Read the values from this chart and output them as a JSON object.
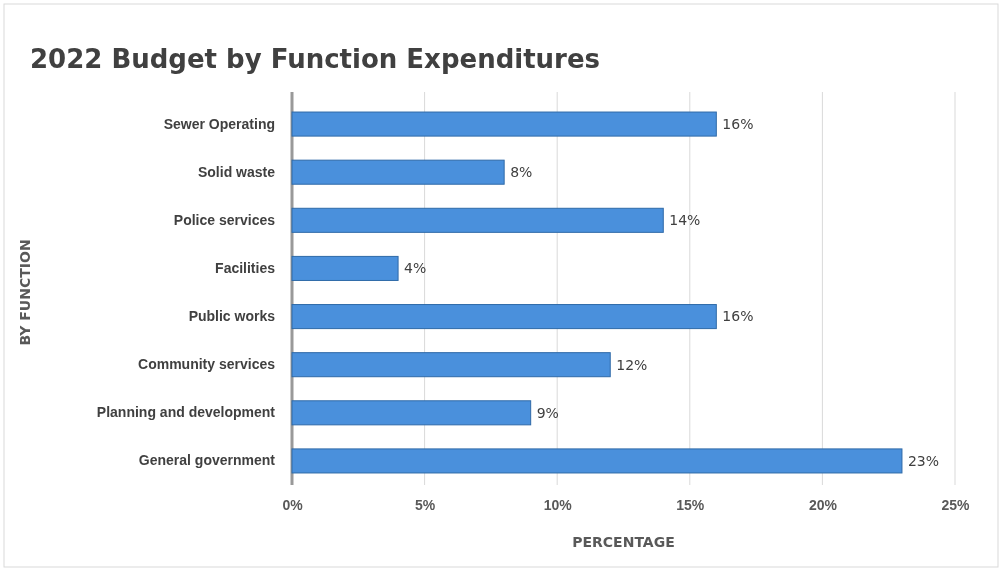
{
  "chart_data": {
    "type": "bar",
    "orientation": "horizontal",
    "title": "2022 Budget by Function Expenditures",
    "xlabel": "PERCENTAGE",
    "ylabel": "BY FUNCTION",
    "categories": [
      "Sewer Operating",
      "Solid waste",
      "Police services",
      "Facilities",
      "Public works",
      "Community services",
      "Planning and development",
      "General government"
    ],
    "values": [
      16,
      8,
      14,
      4,
      16,
      12,
      9,
      23
    ],
    "color": "#4a90dc",
    "data_labels": true,
    "value_labels": [
      "16%",
      "8%",
      "14%",
      "4%",
      "16%",
      "12%",
      "9%",
      "23%"
    ],
    "xlim": [
      0,
      25
    ],
    "xticks": [
      {
        "value": 0,
        "label": "0%"
      },
      {
        "value": 5,
        "label": "5%"
      },
      {
        "value": 10,
        "label": "10%"
      },
      {
        "value": 15,
        "label": "15%"
      },
      {
        "value": 20,
        "label": "20%"
      },
      {
        "value": 25,
        "label": "25%"
      }
    ],
    "grid": "x"
  }
}
